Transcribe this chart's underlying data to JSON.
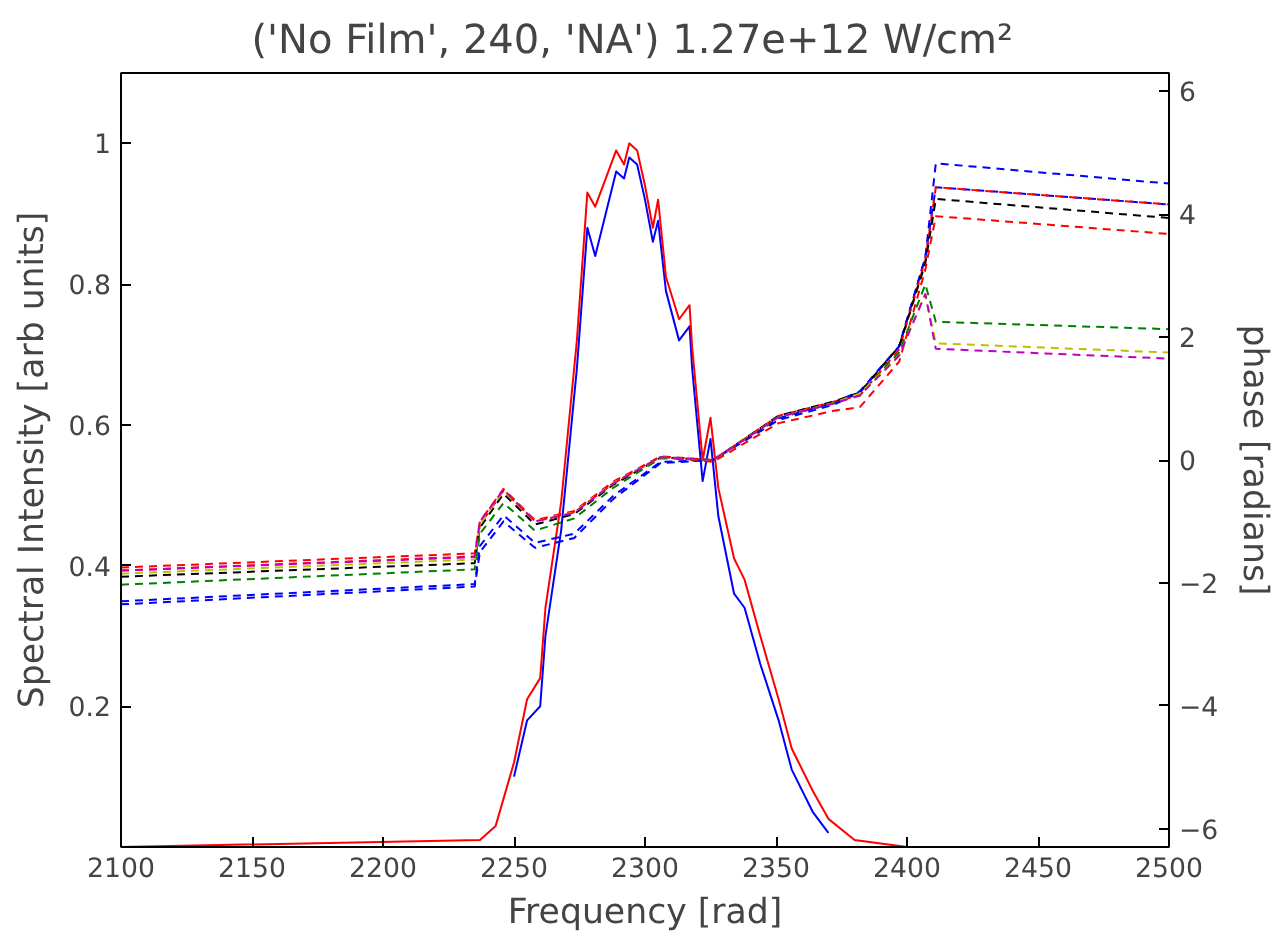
{
  "chart_data": {
    "type": "line",
    "title": "('No Film', 240, 'NA')   1.27e+12 W/cm²",
    "xlabel": "Frequency [rad]",
    "ylabel": "Spectral Intensity [arb units]",
    "y2label": "phase [radians]",
    "xlim": [
      2100,
      2500
    ],
    "xticks": [
      2100,
      2150,
      2200,
      2250,
      2300,
      2350,
      2400,
      2450,
      2500
    ],
    "ylim": [
      0,
      1.1
    ],
    "yticks": [
      0.2,
      0.4,
      0.6,
      0.8,
      1.0
    ],
    "y2lim": [
      -6.3,
      6.3
    ],
    "y2ticks": [
      {
        "value": -6,
        "label": "−6"
      },
      {
        "value": -4,
        "label": "−4"
      },
      {
        "value": -2,
        "label": "−2"
      },
      0,
      2,
      4,
      6
    ],
    "grid": false,
    "x": [
      2100,
      2237,
      2243,
      2250,
      2255,
      2260,
      2262,
      2268,
      2274,
      2278,
      2281,
      2285,
      2289,
      2292,
      2294,
      2297,
      2300,
      2303,
      2305,
      2308,
      2313,
      2317,
      2318,
      2322,
      2325,
      2328,
      2334,
      2338,
      2344,
      2351,
      2356,
      2364,
      2370,
      2380,
      2400,
      2500
    ],
    "series": [
      {
        "color": "#0000ff",
        "line_style": "solid",
        "x": [
          2250,
          2255,
          2260,
          2262,
          2268,
          2274,
          2278,
          2281,
          2285,
          2289,
          2292,
          2294,
          2297,
          2300,
          2303,
          2305,
          2308,
          2313,
          2317,
          2318,
          2322,
          2325,
          2328,
          2334,
          2338,
          2344,
          2351,
          2356,
          2364,
          2370
        ],
        "values": [
          0.1,
          0.18,
          0.2,
          0.3,
          0.45,
          0.68,
          0.88,
          0.84,
          0.9,
          0.96,
          0.95,
          0.98,
          0.97,
          0.92,
          0.86,
          0.89,
          0.79,
          0.72,
          0.74,
          0.68,
          0.52,
          0.58,
          0.47,
          0.36,
          0.34,
          0.26,
          0.18,
          0.11,
          0.05,
          0.02
        ]
      },
      {
        "color": "#ff0000",
        "line_style": "solid",
        "values": [
          0,
          0.01,
          0.03,
          0.12,
          0.21,
          0.24,
          0.34,
          0.49,
          0.72,
          0.93,
          0.91,
          0.95,
          0.99,
          0.97,
          1.0,
          0.99,
          0.94,
          0.88,
          0.92,
          0.81,
          0.75,
          0.77,
          0.71,
          0.55,
          0.61,
          0.51,
          0.41,
          0.38,
          0.3,
          0.21,
          0.14,
          0.08,
          0.04,
          0.01,
          0,
          0
        ]
      },
      {
        "color": "#0000ff",
        "line_style": "dashed",
        "axis": "y2",
        "x": [
          2100,
          2235,
          2237,
          2246,
          2258,
          2273,
          2288,
          2306,
          2326,
          2351,
          2372,
          2382,
          2397,
          2407,
          2411,
          2500
        ],
        "values": [
          -2.35,
          -2.06,
          -1.5,
          -1.0,
          -1.43,
          -1.27,
          -0.63,
          -0.05,
          0.0,
          0.65,
          0.9,
          1.1,
          1.85,
          3.3,
          4.83,
          4.5
        ]
      },
      {
        "color": "#0000ff",
        "line_style": "dashed",
        "axis": "y2",
        "x": [
          2100,
          2235,
          2237,
          2246,
          2258,
          2273,
          2288,
          2306,
          2326,
          2351,
          2372,
          2382,
          2397,
          2407,
          2411,
          2500
        ],
        "values": [
          -2.3,
          -2.02,
          -1.4,
          -0.9,
          -1.35,
          -1.2,
          -0.58,
          -0.03,
          0.0,
          0.68,
          0.93,
          1.12,
          1.85,
          3.3,
          4.44,
          4.16
        ]
      },
      {
        "color": "#ff0000",
        "line_style": "dashed",
        "axis": "y2",
        "x": [
          2100,
          2235,
          2237,
          2246,
          2258,
          2273,
          2288,
          2306,
          2326,
          2351,
          2372,
          2382,
          2397,
          2407,
          2411,
          2500
        ],
        "values": [
          -1.75,
          -1.52,
          -1.0,
          -0.47,
          -0.98,
          -0.83,
          -0.35,
          0.06,
          0.0,
          0.72,
          0.95,
          1.05,
          1.8,
          3.25,
          4.44,
          4.16
        ]
      },
      {
        "color": "#000000",
        "line_style": "dashed",
        "axis": "y2",
        "x": [
          2100,
          2235,
          2237,
          2246,
          2258,
          2273,
          2288,
          2306,
          2326,
          2351,
          2372,
          2382,
          2397,
          2407,
          2411,
          2500
        ],
        "values": [
          -1.9,
          -1.68,
          -1.1,
          -0.55,
          -1.05,
          -0.88,
          -0.4,
          0.04,
          0.0,
          0.72,
          0.95,
          1.1,
          1.85,
          3.2,
          4.25,
          3.94
        ]
      },
      {
        "color": "#ff0000",
        "line_style": "dashed",
        "axis": "y2",
        "x": [
          2100,
          2235,
          2237,
          2246,
          2258,
          2273,
          2288,
          2306,
          2326,
          2351,
          2372,
          2382,
          2397,
          2407,
          2411,
          2500
        ],
        "values": [
          -1.8,
          -1.57,
          -1.05,
          -0.5,
          -1.0,
          -0.85,
          -0.38,
          0.05,
          -0.03,
          0.6,
          0.8,
          0.86,
          1.6,
          3.1,
          3.97,
          3.68
        ]
      },
      {
        "color": "#008000",
        "line_style": "dashed",
        "axis": "y2",
        "x": [
          2100,
          2235,
          2237,
          2246,
          2258,
          2273,
          2288,
          2306,
          2326,
          2351,
          2372,
          2382,
          2397,
          2407,
          2411,
          2500
        ],
        "values": [
          -2.03,
          -1.78,
          -1.2,
          -0.7,
          -1.15,
          -0.95,
          -0.45,
          0.03,
          0.0,
          0.7,
          0.92,
          1.08,
          1.75,
          2.86,
          2.25,
          2.13
        ]
      },
      {
        "color": "#bfbf00",
        "line_style": "dashed",
        "axis": "y2",
        "x": [
          2100,
          2235,
          2237,
          2246,
          2258,
          2273,
          2288,
          2306,
          2326,
          2351,
          2372,
          2382,
          2397,
          2407,
          2411,
          2500
        ],
        "values": [
          -1.85,
          -1.62,
          -1.05,
          -0.5,
          -1.0,
          -0.85,
          -0.37,
          0.05,
          0.0,
          0.7,
          0.93,
          1.08,
          1.7,
          2.7,
          1.9,
          1.75
        ]
      },
      {
        "color": "#bf00bf",
        "line_style": "dashed",
        "axis": "y2",
        "x": [
          2100,
          2235,
          2237,
          2246,
          2258,
          2273,
          2288,
          2306,
          2326,
          2351,
          2372,
          2382,
          2397,
          2407,
          2411,
          2500
        ],
        "values": [
          -1.8,
          -1.58,
          -1.0,
          -0.48,
          -1.0,
          -0.86,
          -0.38,
          0.05,
          0.0,
          0.7,
          0.92,
          1.05,
          1.7,
          2.7,
          1.81,
          1.65
        ]
      }
    ]
  }
}
